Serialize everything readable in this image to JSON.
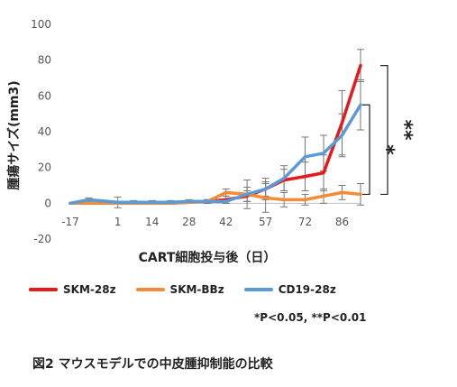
{
  "chart_data": {
    "type": "line",
    "xlabel": "CART細胞投与後（日）",
    "ylabel": "腫瘍サイズ(mm3)",
    "x_tick_labels": [
      "-17",
      "1",
      "14",
      "28",
      "42",
      "57",
      "72",
      "86"
    ],
    "ylim": [
      -20,
      100
    ],
    "y_ticks": [
      -20,
      0,
      20,
      40,
      60,
      80,
      100
    ],
    "grid": false,
    "legend_position": "bottom",
    "x": [
      -17,
      -10,
      1,
      7,
      14,
      21,
      28,
      35,
      42,
      50,
      57,
      64,
      72,
      79,
      86,
      93
    ],
    "series": [
      {
        "name": "SKM-28z",
        "color": "#e41a1c",
        "values": [
          0,
          0,
          0,
          0,
          0,
          0,
          0.5,
          1,
          2,
          4,
          8,
          13,
          15,
          17,
          45,
          77
        ],
        "errors": [
          0,
          0,
          0,
          0,
          0,
          0,
          0.5,
          1,
          2,
          3,
          4,
          6,
          8,
          10,
          18,
          9
        ]
      },
      {
        "name": "SKM-BBz",
        "color": "#f28c38",
        "values": [
          0,
          0,
          0,
          0,
          0,
          0,
          0.5,
          1,
          6,
          5,
          3,
          2,
          2,
          4,
          6,
          5
        ],
        "errors": [
          0,
          0,
          0,
          0,
          0,
          0,
          0.5,
          1,
          2,
          4,
          8,
          4,
          3,
          4,
          4,
          6
        ]
      },
      {
        "name": "CD19-28z",
        "color": "#5b9bd5",
        "values": [
          0,
          2,
          0.5,
          0.5,
          0.5,
          0.5,
          1,
          1,
          1,
          5,
          8,
          14,
          26,
          28,
          38,
          55
        ],
        "errors": [
          0,
          1,
          3,
          1,
          1,
          1,
          1,
          1,
          1,
          8,
          6,
          7,
          11,
          10,
          12,
          14
        ]
      }
    ],
    "significance": [
      {
        "label": "*",
        "from": 5,
        "to": 55
      },
      {
        "label": "**",
        "from": 5,
        "to": 77
      }
    ]
  },
  "p_note": "*P<0.05, **P<0.01",
  "caption": "図2 マウスモデルでの中皮腫抑制能の比較"
}
